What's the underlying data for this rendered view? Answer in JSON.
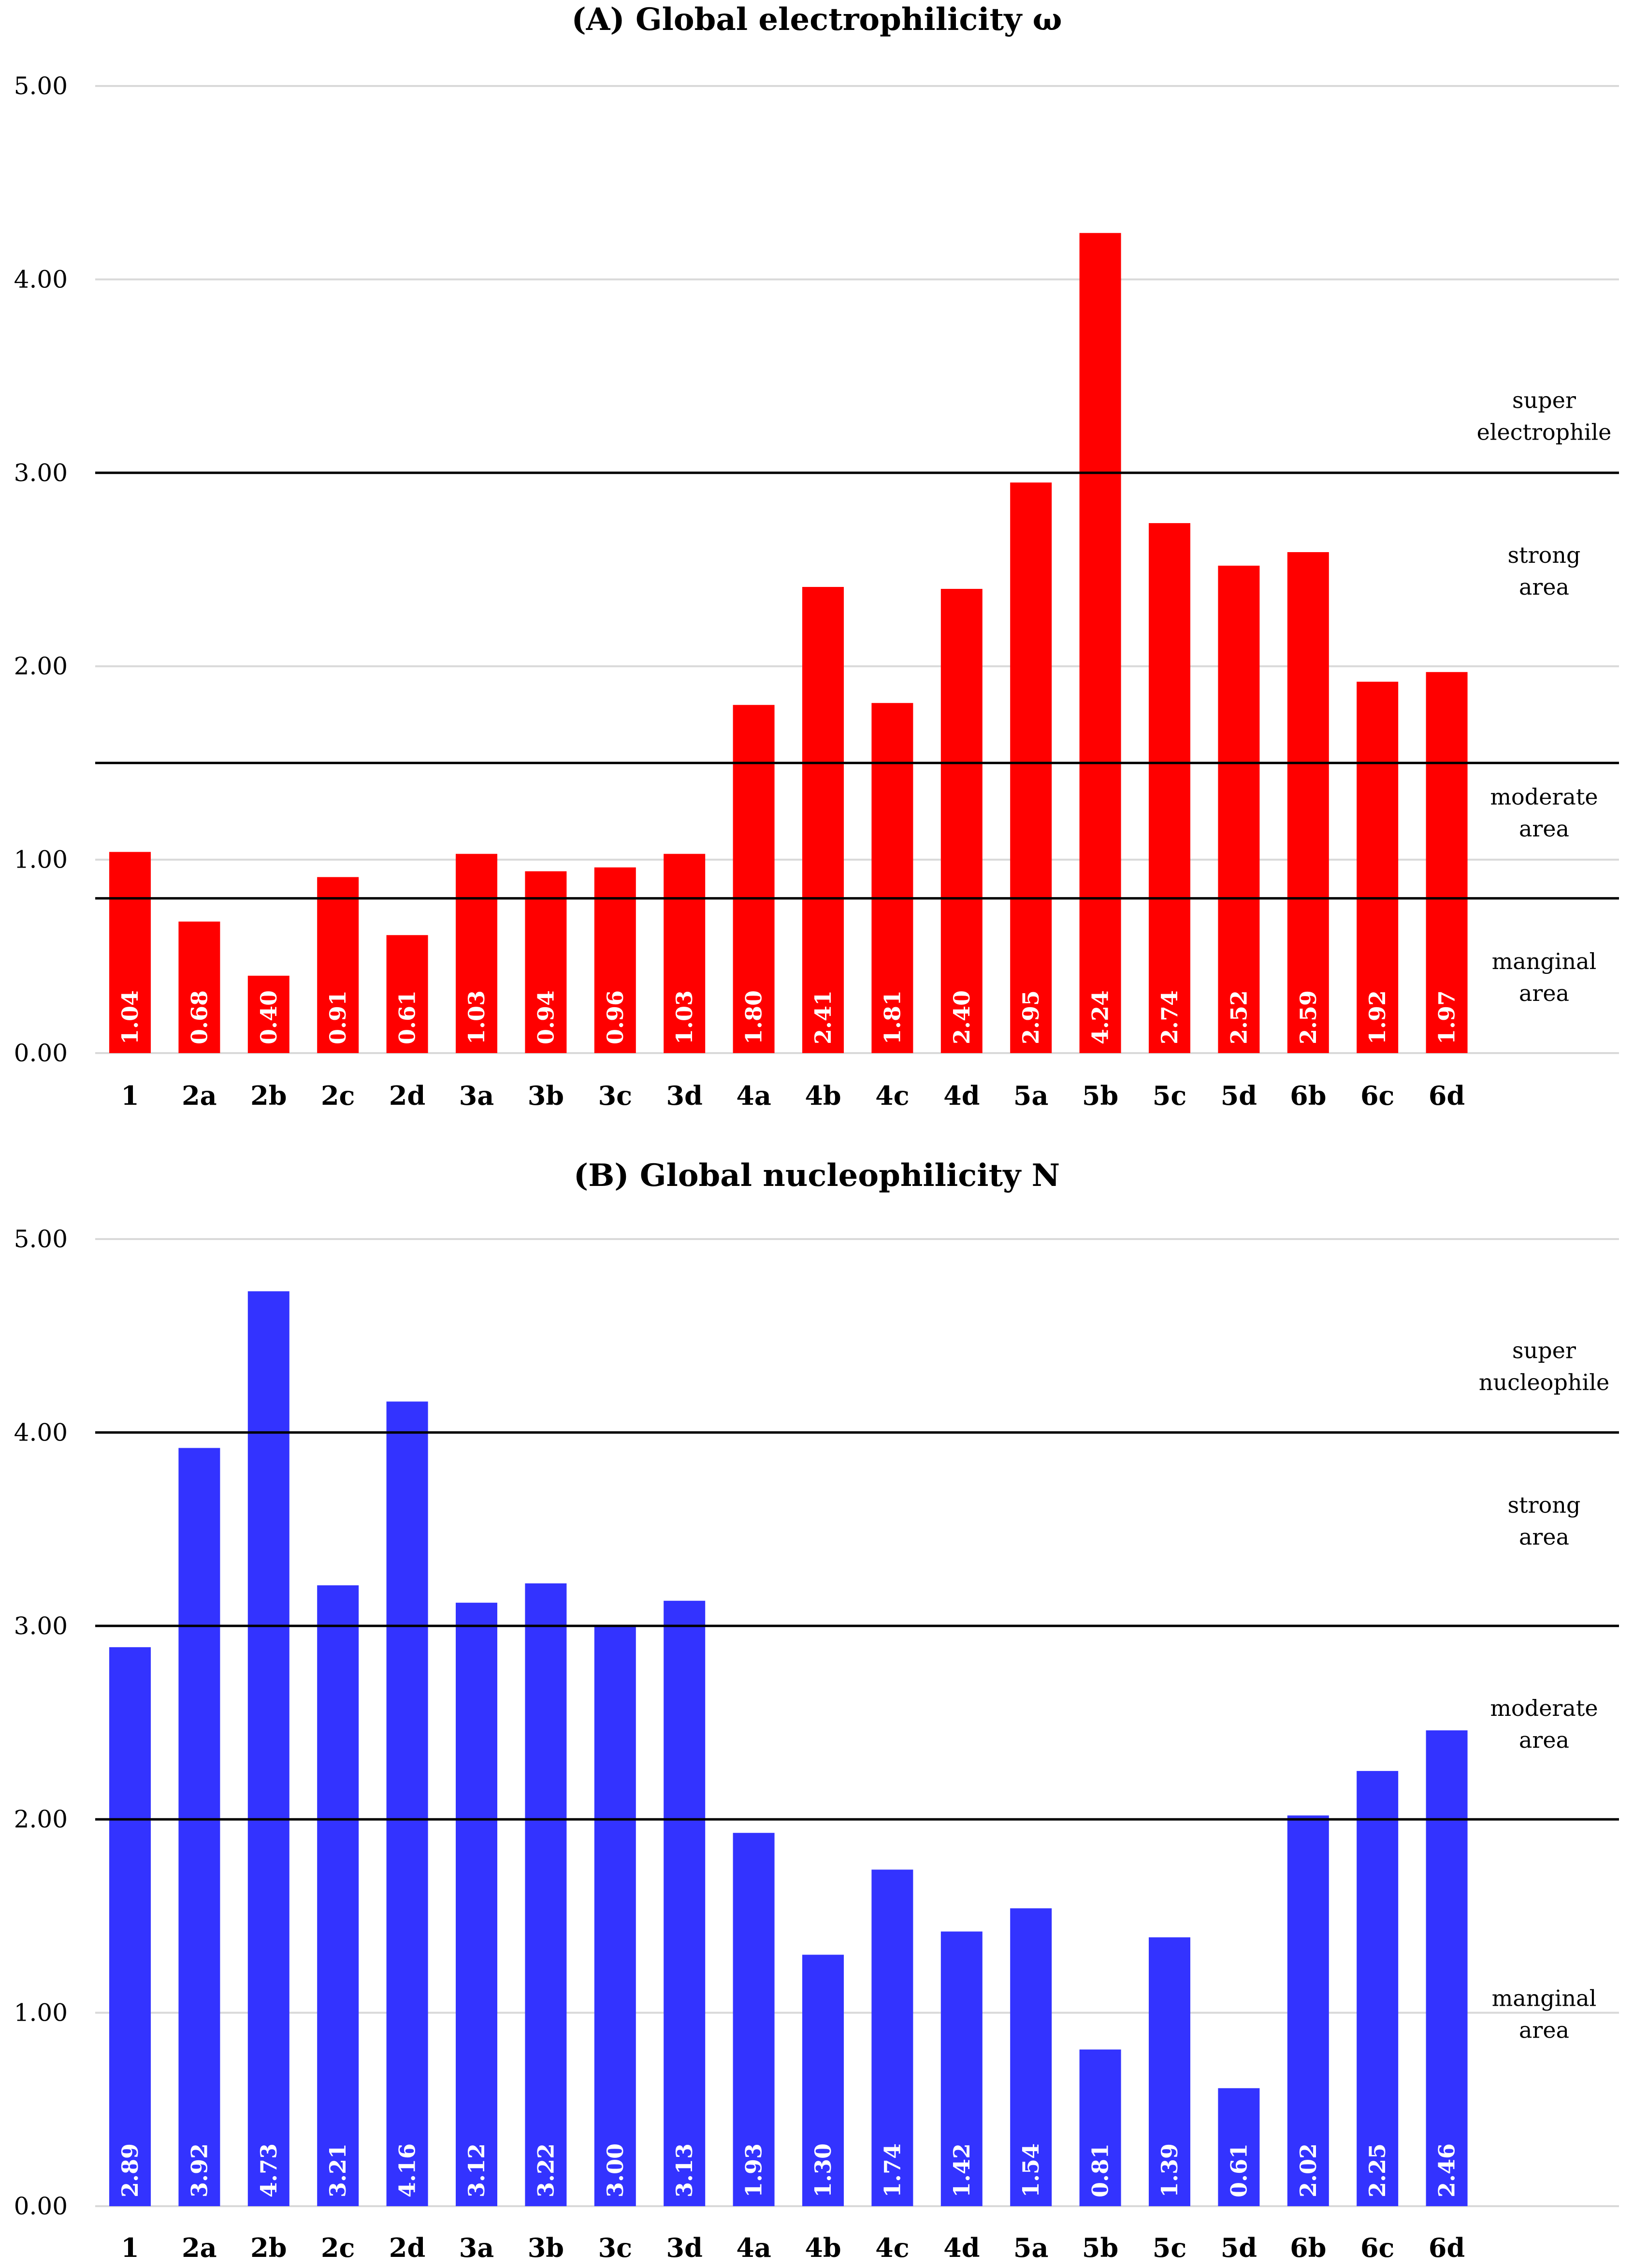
{
  "chart_data": [
    {
      "type": "bar",
      "title": "(A) Global electrophilicity ω",
      "categories": [
        "1",
        "2a",
        "2b",
        "2c",
        "2d",
        "3a",
        "3b",
        "3c",
        "3d",
        "4a",
        "4b",
        "4c",
        "4d",
        "5a",
        "5b",
        "5c",
        "5d",
        "6b",
        "6c",
        "6d"
      ],
      "values": [
        1.04,
        0.68,
        0.4,
        0.91,
        0.61,
        1.03,
        0.94,
        0.96,
        1.03,
        1.8,
        2.41,
        1.81,
        2.4,
        2.95,
        4.24,
        2.74,
        2.52,
        2.59,
        1.92,
        1.97
      ],
      "data_labels": [
        "1.04",
        "0.68",
        "0.40",
        "0.91",
        "0.61",
        "1.03",
        "0.94",
        "0.96",
        "1.03",
        "1.80",
        "2.41",
        "1.81",
        "2.40",
        "2.95",
        "4.24",
        "2.74",
        "2.52",
        "2.59",
        "1.92",
        "1.97"
      ],
      "ylim": [
        0,
        5
      ],
      "yticks": [
        "0.00",
        "1.00",
        "2.00",
        "3.00",
        "4.00",
        "5.00"
      ],
      "ytick_values": [
        0,
        1,
        2,
        3,
        4,
        5
      ],
      "bar_color": "#ff0000",
      "thresholds": [
        3.0,
        1.5,
        0.8
      ],
      "zones": [
        {
          "line1": "super",
          "line2": "electrophile",
          "center": 3.3
        },
        {
          "line1": "strong",
          "line2": "area",
          "center": 2.5
        },
        {
          "line1": "moderate",
          "line2": "area",
          "center": 1.25
        },
        {
          "line1": "manginal",
          "line2": "area",
          "center": 0.4
        }
      ],
      "xlabel": "",
      "ylabel": "",
      "grid": true
    },
    {
      "type": "bar",
      "title": "(B) Global nucleophilicity N",
      "categories": [
        "1",
        "2a",
        "2b",
        "2c",
        "2d",
        "3a",
        "3b",
        "3c",
        "3d",
        "4a",
        "4b",
        "4c",
        "4d",
        "5a",
        "5b",
        "5c",
        "5d",
        "6b",
        "6c",
        "6d"
      ],
      "values": [
        2.89,
        3.92,
        4.73,
        3.21,
        4.16,
        3.12,
        3.22,
        3.0,
        3.13,
        1.93,
        1.3,
        1.74,
        1.42,
        1.54,
        0.81,
        1.39,
        0.61,
        2.02,
        2.25,
        2.46
      ],
      "data_labels": [
        "2.89",
        "3.92",
        "4.73",
        "3.21",
        "4.16",
        "3.12",
        "3.22",
        "3.00",
        "3.13",
        "1.93",
        "1.30",
        "1.74",
        "1.42",
        "1.54",
        "0.81",
        "1.39",
        "0.61",
        "2.02",
        "2.25",
        "2.46"
      ],
      "ylim": [
        0,
        5
      ],
      "yticks": [
        "0.00",
        "1.00",
        "2.00",
        "3.00",
        "4.00",
        "5.00"
      ],
      "ytick_values": [
        0,
        1,
        2,
        3,
        4,
        5
      ],
      "bar_color": "#3333ff",
      "thresholds": [
        4.0,
        3.0,
        2.0
      ],
      "zones": [
        {
          "line1": "super",
          "line2": "nucleophile",
          "center": 4.35
        },
        {
          "line1": "strong",
          "line2": "area",
          "center": 3.55
        },
        {
          "line1": "moderate",
          "line2": "area",
          "center": 2.5
        },
        {
          "line1": "manginal",
          "line2": "area",
          "center": 1.0
        }
      ],
      "xlabel": "",
      "ylabel": "",
      "grid": true
    }
  ]
}
